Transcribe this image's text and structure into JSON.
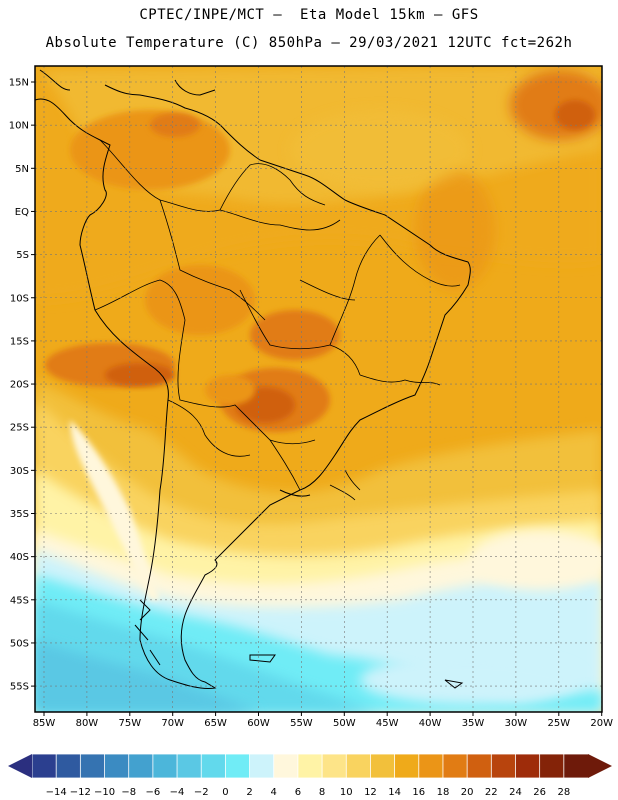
{
  "header": {
    "line1": "CPTEC/INPE/MCT –  Eta Model 15km – GFS",
    "line2": "Absolute Temperature (C) 850hPa – 29/03/2021 12UTC fct=262h"
  },
  "map": {
    "lat_labels": [
      "15N",
      "10N",
      "5N",
      "EQ",
      "5S",
      "10S",
      "15S",
      "20S",
      "25S",
      "30S",
      "35S",
      "40S",
      "45S",
      "50S",
      "55S"
    ],
    "lon_labels": [
      "85W",
      "80W",
      "75W",
      "70W",
      "65W",
      "60W",
      "55W",
      "50W",
      "45W",
      "40W",
      "35W",
      "30W",
      "25W",
      "20W"
    ]
  },
  "colorbar": {
    "ticks": [
      "-14",
      "-12",
      "-10",
      "-8",
      "-6",
      "-4",
      "-2",
      "0",
      "2",
      "4",
      "6",
      "8",
      "10",
      "12",
      "14",
      "16",
      "18",
      "20",
      "22",
      "24",
      "26",
      "28"
    ],
    "colors": [
      "#2b3f8f",
      "#2f5aa0",
      "#3573b1",
      "#3b8bc2",
      "#43a1cf",
      "#4cb6da",
      "#5ac8e4",
      "#62d9ec",
      "#70ecf6",
      "#cdf3fb",
      "#fff7dc",
      "#fff3a6",
      "#fde488",
      "#f9d35f",
      "#f2c03b",
      "#efaa1a",
      "#eb9517",
      "#e17c14",
      "#d06010",
      "#b8440d",
      "#9e2c0a",
      "#842308",
      "#6e1a0a"
    ]
  }
}
